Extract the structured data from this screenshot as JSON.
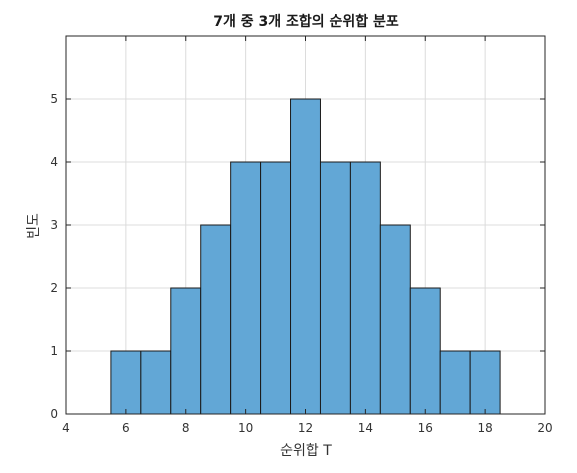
{
  "chart_data": {
    "type": "bar",
    "title": "7개 중 3개 조합의 순위합 분포",
    "xlabel": "순위합 T",
    "ylabel": "빈도",
    "xlim": [
      4,
      20
    ],
    "ylim": [
      0,
      6
    ],
    "xticks": [
      4,
      6,
      8,
      10,
      12,
      14,
      16,
      18,
      20
    ],
    "yticks": [
      0,
      1,
      2,
      3,
      4,
      5
    ],
    "grid": true,
    "bar_color": "#62a7d6",
    "x": [
      6,
      7,
      8,
      9,
      10,
      11,
      12,
      13,
      14,
      15,
      16,
      17,
      18
    ],
    "values": [
      1,
      1,
      2,
      3,
      4,
      4,
      5,
      4,
      4,
      3,
      2,
      1,
      1
    ]
  }
}
